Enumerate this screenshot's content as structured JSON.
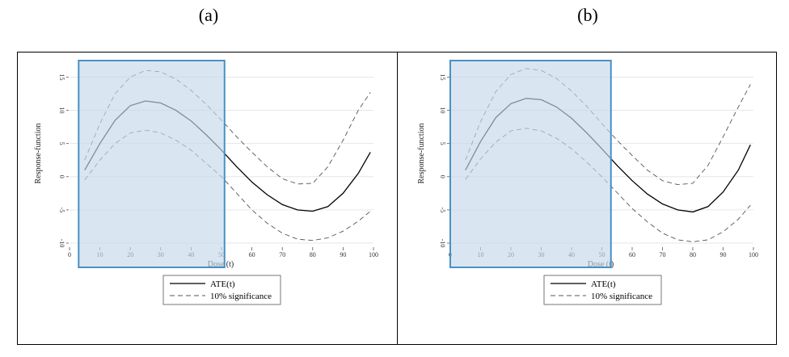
{
  "panels": [
    {
      "label": "(a)"
    },
    {
      "label": "(b)"
    }
  ],
  "chart_data": [
    {
      "type": "line",
      "xlabel": "Dose (t)",
      "ylabel": "Response-function",
      "xlim": [
        0,
        100
      ],
      "ylim": [
        -10,
        17
      ],
      "x_ticks": [
        0,
        10,
        20,
        30,
        40,
        50,
        60,
        70,
        80,
        90,
        100
      ],
      "y_ticks": [
        -10,
        -5,
        0,
        5,
        10,
        15
      ],
      "grid": true,
      "highlight_region": {
        "x": [
          3,
          51
        ],
        "color": "#c4d9ea",
        "edge": "#4a90c2"
      },
      "legend": {
        "placement": "bottom-center",
        "entries": [
          "ATE(t)",
          "10% significance"
        ]
      },
      "series": [
        {
          "name": "ATE(t)",
          "style": "solid",
          "color": "#000000",
          "x": [
            5,
            10,
            15,
            20,
            25,
            30,
            35,
            40,
            45,
            50,
            55,
            60,
            65,
            70,
            75,
            80,
            85,
            90,
            95,
            99
          ],
          "y": [
            1.0,
            5.0,
            8.5,
            10.7,
            11.4,
            11.1,
            10.0,
            8.4,
            6.3,
            4.0,
            1.5,
            -0.8,
            -2.7,
            -4.2,
            -5.0,
            -5.2,
            -4.5,
            -2.5,
            0.5,
            3.7
          ]
        },
        {
          "name": "10% significance",
          "style": "dashed",
          "color": "#555555",
          "x": [
            5,
            10,
            15,
            20,
            25,
            30,
            35,
            40,
            45,
            50,
            55,
            60,
            65,
            70,
            75,
            80,
            85,
            90,
            95,
            99
          ],
          "y": [
            2.5,
            8.0,
            12.5,
            15.0,
            16.0,
            15.8,
            14.7,
            13.0,
            10.9,
            8.5,
            6.0,
            3.7,
            1.5,
            -0.3,
            -1.1,
            -1.0,
            1.5,
            5.5,
            10.0,
            12.7
          ]
        },
        {
          "name": "10% significance",
          "style": "dashed",
          "color": "#555555",
          "x": [
            5,
            10,
            15,
            20,
            25,
            30,
            35,
            40,
            45,
            50,
            55,
            60,
            65,
            70,
            75,
            80,
            85,
            90,
            95,
            99
          ],
          "y": [
            -0.5,
            2.5,
            5.0,
            6.6,
            7.0,
            6.6,
            5.5,
            4.0,
            2.0,
            0.0,
            -2.5,
            -5.0,
            -7.0,
            -8.5,
            -9.4,
            -9.6,
            -9.2,
            -8.2,
            -6.7,
            -5.2
          ]
        }
      ]
    },
    {
      "type": "line",
      "xlabel": "Dose (t)",
      "ylabel": "Response-function",
      "xlim": [
        0,
        100
      ],
      "ylim": [
        -10,
        17
      ],
      "x_ticks": [
        0,
        10,
        20,
        30,
        40,
        50,
        60,
        70,
        80,
        90,
        100
      ],
      "y_ticks": [
        -10,
        -5,
        0,
        5,
        10,
        15
      ],
      "grid": true,
      "highlight_region": {
        "x": [
          0,
          53
        ],
        "color": "#c4d9ea",
        "edge": "#4a90c2"
      },
      "legend": {
        "placement": "bottom-center",
        "entries": [
          "ATE(t)",
          "10% significance"
        ]
      },
      "series": [
        {
          "name": "ATE(t)",
          "style": "solid",
          "color": "#000000",
          "x": [
            5,
            10,
            15,
            20,
            25,
            30,
            35,
            40,
            45,
            50,
            55,
            60,
            65,
            70,
            75,
            80,
            85,
            90,
            95,
            99
          ],
          "y": [
            1.0,
            5.3,
            8.9,
            11.0,
            11.8,
            11.6,
            10.5,
            8.8,
            6.6,
            4.2,
            1.7,
            -0.6,
            -2.6,
            -4.1,
            -5.0,
            -5.3,
            -4.5,
            -2.3,
            1.0,
            4.8
          ]
        },
        {
          "name": "10% significance",
          "style": "dashed",
          "color": "#555555",
          "x": [
            5,
            10,
            15,
            20,
            25,
            30,
            35,
            40,
            45,
            50,
            55,
            60,
            65,
            70,
            75,
            80,
            85,
            90,
            95,
            99
          ],
          "y": [
            2.5,
            8.3,
            12.8,
            15.4,
            16.3,
            16.0,
            14.8,
            12.9,
            10.6,
            8.0,
            5.5,
            3.2,
            1.0,
            -0.6,
            -1.2,
            -1.0,
            1.7,
            6.0,
            10.5,
            13.9
          ]
        },
        {
          "name": "10% significance",
          "style": "dashed",
          "color": "#555555",
          "x": [
            5,
            10,
            15,
            20,
            25,
            30,
            35,
            40,
            45,
            50,
            55,
            60,
            65,
            70,
            75,
            80,
            85,
            90,
            95,
            99
          ],
          "y": [
            -0.4,
            2.7,
            5.2,
            6.9,
            7.3,
            6.9,
            5.8,
            4.2,
            2.2,
            0.0,
            -2.4,
            -4.8,
            -6.8,
            -8.5,
            -9.5,
            -9.8,
            -9.5,
            -8.3,
            -6.4,
            -4.3
          ]
        }
      ]
    }
  ]
}
